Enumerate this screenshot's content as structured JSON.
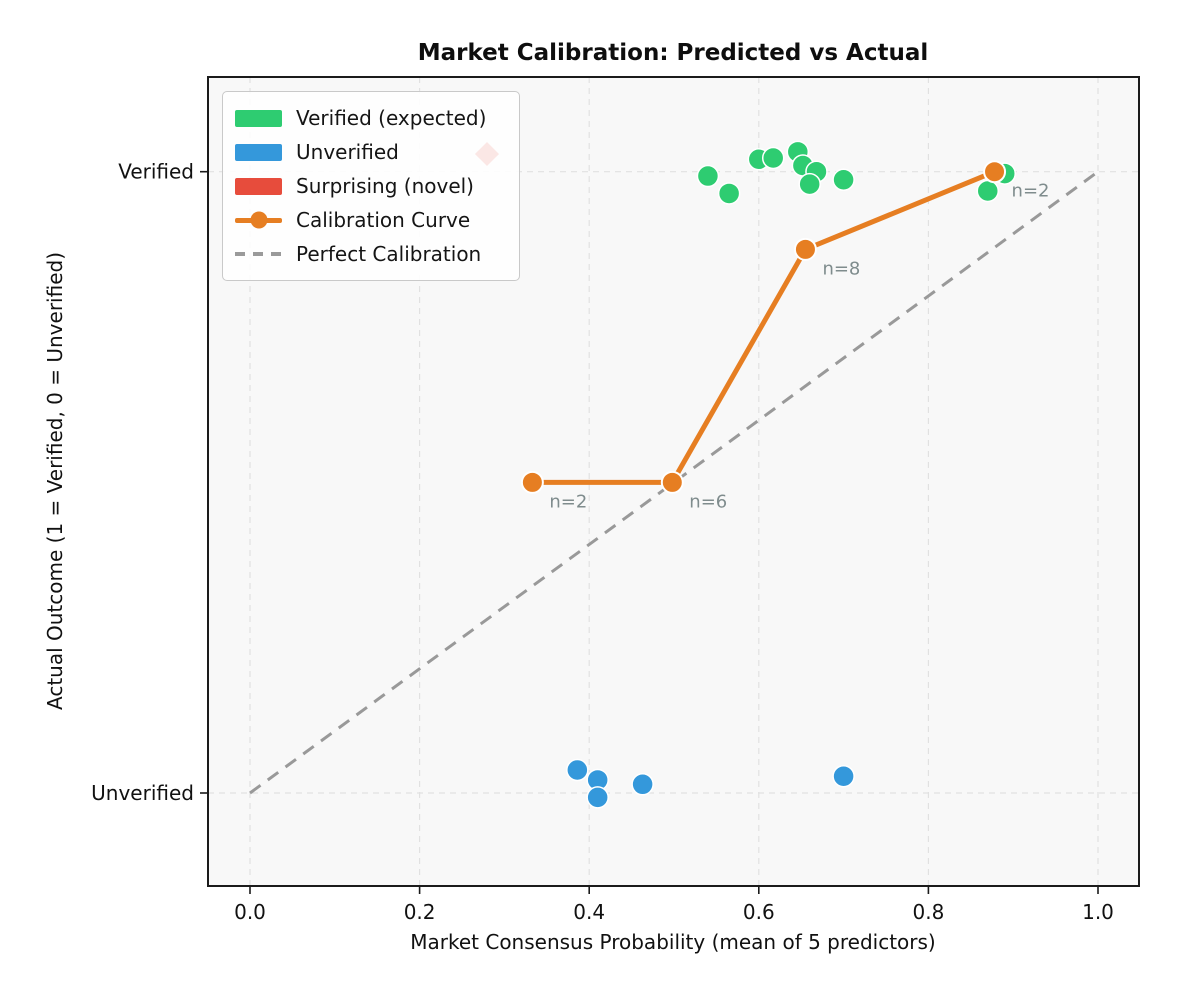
{
  "figure": {
    "title": "Market Calibration: Predicted vs Actual"
  },
  "axes": {
    "xlabel": "Market Consensus Probability (mean of 5 predictors)",
    "ylabel": "Actual Outcome (1 = Verified, 0 = Unverified)",
    "x_ticks": [
      {
        "value": 0.0,
        "label": "0.0"
      },
      {
        "value": 0.2,
        "label": "0.2"
      },
      {
        "value": 0.4,
        "label": "0.4"
      },
      {
        "value": 0.6,
        "label": "0.6"
      },
      {
        "value": 0.8,
        "label": "0.8"
      },
      {
        "value": 1.0,
        "label": "1.0"
      }
    ],
    "y_ticks": [
      {
        "value": 1,
        "label": "Verified"
      },
      {
        "value": 0,
        "label": "Unverified"
      }
    ]
  },
  "legend": {
    "items": [
      {
        "label": "Verified (expected)",
        "color": "#2ecc71",
        "type": "patch"
      },
      {
        "label": "Unverified",
        "color": "#3498db",
        "type": "patch"
      },
      {
        "label": "Surprising (novel)",
        "color": "#e74c3c",
        "type": "patch"
      },
      {
        "label": "Calibration Curve",
        "color": "#e67e22",
        "type": "line-marker"
      },
      {
        "label": "Perfect Calibration",
        "color": "#9a9a9a",
        "type": "dashed"
      }
    ],
    "position": "upper left"
  },
  "chart_data": {
    "type": "scatter",
    "xlim": [
      -0.05,
      1.05
    ],
    "ylim": [
      -0.15,
      1.15
    ],
    "grid": true,
    "title": "Market Calibration: Predicted vs Actual",
    "xlabel": "Market Consensus Probability (mean of 5 predictors)",
    "ylabel": "Actual Outcome (1 = Verified, 0 = Unverified)",
    "series": [
      {
        "name": "Verified (expected)",
        "kind": "scatter",
        "marker": "circle",
        "color": "#2ecc71",
        "opacity": 1,
        "points": [
          [
            0.54,
            0.993
          ],
          [
            0.565,
            0.965
          ],
          [
            0.6,
            1.02
          ],
          [
            0.617,
            1.022
          ],
          [
            0.646,
            1.032
          ],
          [
            0.652,
            1.01
          ],
          [
            0.668,
            1.0
          ],
          [
            0.66,
            0.98
          ],
          [
            0.7,
            0.987
          ],
          [
            0.87,
            0.969
          ],
          [
            0.89,
            0.997
          ]
        ]
      },
      {
        "name": "Unverified",
        "kind": "scatter",
        "marker": "circle",
        "color": "#3498db",
        "opacity": 1,
        "points": [
          [
            0.386,
            0.037
          ],
          [
            0.41,
            0.021
          ],
          [
            0.41,
            -0.007
          ],
          [
            0.463,
            0.014
          ],
          [
            0.7,
            0.027
          ]
        ]
      },
      {
        "name": "Surprising (novel)",
        "kind": "scatter",
        "marker": "diamond",
        "color": "#e74c3c",
        "opacity": 0.13,
        "points": [
          [
            0.279,
            1.028
          ]
        ]
      },
      {
        "name": "Calibration Curve",
        "kind": "line-marker",
        "color": "#e67e22",
        "points": [
          [
            0.333,
            0.5
          ],
          [
            0.498,
            0.5
          ],
          [
            0.655,
            0.875
          ],
          [
            0.878,
            1.0
          ]
        ],
        "point_labels": [
          "n=2",
          "n=6",
          "n=8",
          "n=2"
        ]
      },
      {
        "name": "Perfect Calibration",
        "kind": "dashed-line",
        "color": "#999999",
        "points": [
          [
            0.0,
            0.0
          ],
          [
            1.0,
            1.0
          ]
        ]
      }
    ],
    "style": {
      "axes_bg": "#f8f8f8",
      "grid_color": "#e1e1e1",
      "spine_color": "#1b1b1b",
      "tick_label_color": "#111111",
      "n_label_color": "#7f8c8d",
      "marker_edge": "#ffffff"
    }
  }
}
